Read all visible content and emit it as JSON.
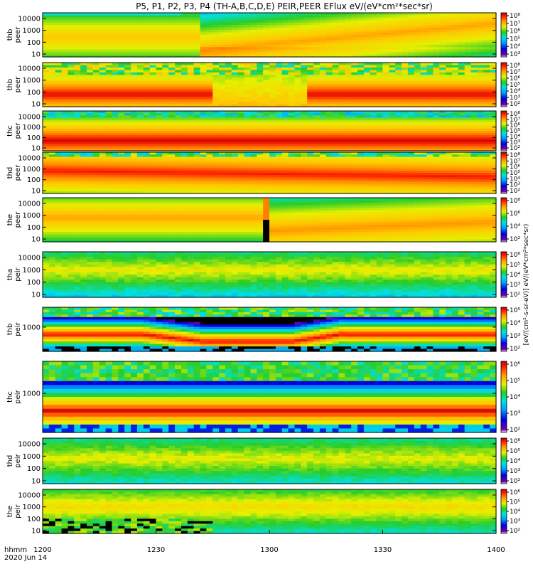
{
  "chart_data": {
    "type": "heatmap",
    "title": "P5, P1, P2, P3, P4 (TH-A,B,C,D,E) PEIR,PEER EFlux eV/(eV*cm²*sec*sr)",
    "date_label": "2020 Jun 14",
    "time_format_label": "hhmm",
    "x_ticks": [
      "1200",
      "1230",
      "1300",
      "1330",
      "1400"
    ],
    "x_range": [
      "1200",
      "1400"
    ],
    "y_scale": "log",
    "colorbar_unit": "[eV/(cm²-s-sr-eV)]",
    "colorbar_label_repeated": "eV/(eV*cm²*sec*sr)",
    "panels": [
      {
        "probe": "thb",
        "product": "peer",
        "y_ticks": [
          "10000",
          "1000",
          "100",
          "10"
        ],
        "colorbar_ticks": [
          "10⁸",
          "10⁷",
          "10⁶",
          "10⁵",
          "10⁴",
          "10³"
        ],
        "pattern": "electron_rise"
      },
      {
        "probe": "thb",
        "product": "peer",
        "y_ticks": [
          "10000",
          "1000",
          "100",
          "10"
        ],
        "colorbar_ticks": [
          "10⁸",
          "10⁷",
          "10⁶",
          "10⁵",
          "10⁴",
          "10³",
          "10²"
        ],
        "pattern": "electron_hole"
      },
      {
        "probe": "thc",
        "product": "peer",
        "y_ticks": [
          "10000",
          "1000",
          "100",
          "10"
        ],
        "colorbar_ticks": [
          "10⁸",
          "10⁷",
          "10⁶",
          "10⁵",
          "10⁴",
          "10³",
          "10²"
        ],
        "pattern": "electron_flat"
      },
      {
        "probe": "thd",
        "product": "peer",
        "y_ticks": [
          "10000",
          "1000",
          "100",
          "10"
        ],
        "colorbar_ticks": [
          "10⁸",
          "10⁷",
          "10⁶",
          "10⁵",
          "10⁴",
          "10³",
          "10²"
        ],
        "pattern": "electron_bright"
      },
      {
        "probe": "the",
        "product": "peer",
        "y_ticks": [
          "10000",
          "1000",
          "100",
          "10"
        ],
        "colorbar_ticks": [
          "10⁸",
          "10⁶",
          "10⁴",
          "10²"
        ],
        "pattern": "electron_gap"
      },
      {
        "probe": "tha",
        "product": "peir",
        "y_ticks": [
          "10000",
          "1000",
          "100",
          "10"
        ],
        "colorbar_ticks": [
          "10⁶",
          "10⁵",
          "10⁴",
          "10³",
          "10²"
        ],
        "pattern": "ion_plain"
      },
      {
        "probe": "thb",
        "product": "peir",
        "y_ticks": [
          "1000"
        ],
        "colorbar_ticks": [
          "10⁵",
          "10⁴",
          "10³",
          "10²"
        ],
        "pattern": "ion_band_dip"
      },
      {
        "probe": "thc",
        "product": "peir",
        "y_ticks": [
          "1000"
        ],
        "colorbar_ticks": [
          "10⁶",
          "10⁵",
          "10⁴",
          "10³",
          "10²"
        ],
        "pattern": "ion_band_flat"
      },
      {
        "probe": "thd",
        "product": "peir",
        "y_ticks": [
          "10000",
          "1000",
          "100",
          "10"
        ],
        "colorbar_ticks": [
          "10⁶",
          "10⁵",
          "10⁴",
          "10³",
          "10²"
        ],
        "pattern": "ion_plain2"
      },
      {
        "probe": "the",
        "product": "peir",
        "y_ticks": [
          "10000",
          "1000",
          "100",
          "10"
        ],
        "colorbar_ticks": [
          "10⁶",
          "10⁵",
          "10⁴",
          "10³",
          "10²"
        ],
        "pattern": "ion_noise_left"
      }
    ]
  }
}
